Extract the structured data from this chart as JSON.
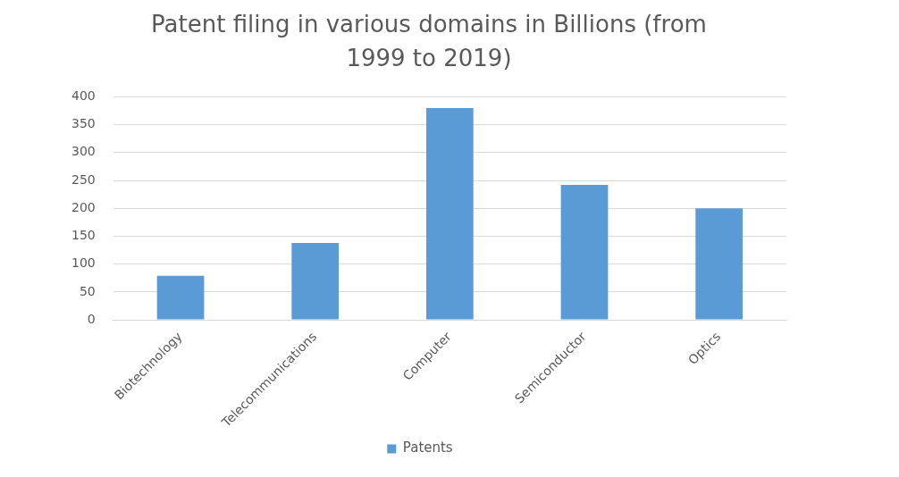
{
  "chart_data": {
    "type": "bar",
    "title": "Patent filing in various domains in Billions (from 1999 to 2019)",
    "categories": [
      "Biotechnology",
      "Telecommunications",
      "Computer",
      "Semiconductor",
      "Optics"
    ],
    "series": [
      {
        "name": "Patents",
        "color": "#5b9bd5",
        "values": [
          79,
          138,
          380,
          242,
          200
        ]
      }
    ],
    "ylim": [
      0,
      400
    ],
    "yticks": [
      0,
      50,
      100,
      150,
      200,
      250,
      300,
      350,
      400
    ],
    "grid": "y",
    "legend": "bottom"
  }
}
